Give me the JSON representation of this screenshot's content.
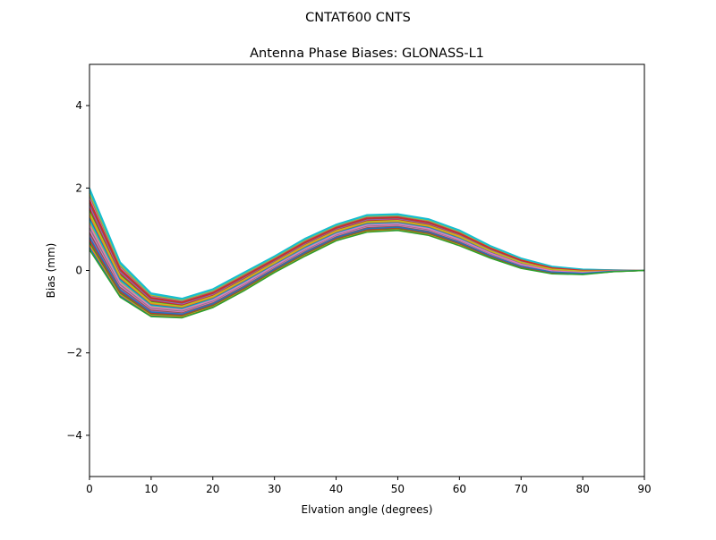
{
  "chart_data": {
    "type": "line",
    "suptitle": "CNTAT600         CNTS",
    "title": "Antenna Phase Biases: GLONASS-L1",
    "xlabel": "Elvation angle (degrees)",
    "ylabel": "Bias (mm)",
    "xlim": [
      0,
      90
    ],
    "ylim": [
      -5,
      5
    ],
    "xticks": [
      0,
      10,
      20,
      30,
      40,
      50,
      60,
      70,
      80,
      90
    ],
    "yticks": [
      -4,
      -2,
      0,
      2,
      4
    ],
    "ytick_labels": [
      "−4",
      "−2",
      "0",
      "2",
      "4"
    ],
    "grid": false,
    "x": [
      0,
      5,
      10,
      15,
      20,
      25,
      30,
      35,
      40,
      45,
      50,
      55,
      60,
      65,
      70,
      75,
      80,
      85,
      90
    ],
    "series": [
      {
        "name": "s1",
        "color": "#17becf",
        "values": [
          2.0,
          0.2,
          -0.55,
          -0.68,
          -0.45,
          -0.05,
          0.35,
          0.78,
          1.12,
          1.35,
          1.37,
          1.25,
          0.98,
          0.6,
          0.3,
          0.1,
          0.03,
          0.01,
          0
        ]
      },
      {
        "name": "s2",
        "color": "#d62728",
        "values": [
          1.7,
          0.03,
          -0.66,
          -0.77,
          -0.54,
          -0.14,
          0.27,
          0.69,
          1.04,
          1.27,
          1.29,
          1.17,
          0.9,
          0.54,
          0.25,
          0.06,
          0.0,
          0.0,
          0
        ]
      },
      {
        "name": "s3",
        "color": "#bcbd22",
        "values": [
          1.4,
          -0.14,
          -0.78,
          -0.87,
          -0.63,
          -0.23,
          0.19,
          0.61,
          0.96,
          1.18,
          1.21,
          1.09,
          0.83,
          0.48,
          0.2,
          0.03,
          -0.02,
          -0.01,
          0
        ]
      },
      {
        "name": "s4",
        "color": "#e377c2",
        "values": [
          1.1,
          -0.31,
          -0.89,
          -0.96,
          -0.72,
          -0.32,
          0.11,
          0.52,
          0.88,
          1.1,
          1.13,
          1.01,
          0.75,
          0.42,
          0.15,
          -0.01,
          -0.05,
          -0.01,
          0
        ]
      },
      {
        "name": "s5",
        "color": "#1f77b4",
        "values": [
          0.8,
          -0.48,
          -1.01,
          -1.06,
          -0.81,
          -0.41,
          0.03,
          0.44,
          0.8,
          1.01,
          1.05,
          0.93,
          0.68,
          0.36,
          0.1,
          -0.04,
          -0.07,
          -0.02,
          0
        ]
      },
      {
        "name": "s6",
        "color": "#2ca02c",
        "values": [
          0.5,
          -0.65,
          -1.12,
          -1.15,
          -0.9,
          -0.5,
          -0.05,
          0.35,
          0.72,
          0.93,
          0.97,
          0.85,
          0.6,
          0.3,
          0.05,
          -0.08,
          -0.1,
          -0.03,
          0
        ]
      }
    ]
  }
}
